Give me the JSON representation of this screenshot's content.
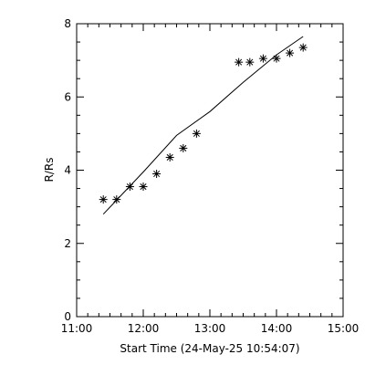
{
  "chart_data": {
    "type": "scatter",
    "title": "",
    "xlabel": "Start Time (24-May-25 10:54:07)",
    "ylabel": "R/Rs",
    "x_unit": "time (HH:MM)",
    "xlim": [
      "11:00",
      "15:00"
    ],
    "ylim": [
      0,
      8
    ],
    "xticks": [
      "11:00",
      "12:00",
      "13:00",
      "14:00",
      "15:00"
    ],
    "yticks": [
      "0",
      "2",
      "4",
      "6",
      "8"
    ],
    "grid": false,
    "legend": "none",
    "series": [
      {
        "marker": "asterisk",
        "x": [
          "11:24",
          "11:36",
          "11:48",
          "12:00",
          "12:12",
          "12:24",
          "12:36",
          "12:48",
          "13:26",
          "13:36",
          "13:48",
          "14:00",
          "14:12",
          "14:24"
        ],
        "y": [
          3.2,
          3.2,
          3.55,
          3.55,
          3.9,
          4.35,
          4.6,
          5.0,
          6.95,
          6.95,
          7.05,
          7.05,
          7.2,
          7.35
        ]
      },
      {
        "style": "line",
        "x": [
          "11:24",
          "12:00",
          "12:30",
          "13:00",
          "13:30",
          "14:00",
          "14:24"
        ],
        "y": [
          2.8,
          3.95,
          4.95,
          5.6,
          6.4,
          7.15,
          7.65
        ]
      }
    ],
    "colors": {
      "foreground": "#000000",
      "background": "#ffffff"
    }
  }
}
